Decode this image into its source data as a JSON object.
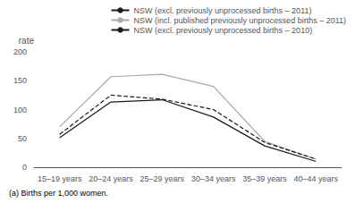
{
  "chart_data": {
    "type": "line",
    "categories": [
      "15–19 years",
      "20–24 years",
      "25–29 years",
      "30–34 years",
      "35–39 years",
      "40–44 years"
    ],
    "series": [
      {
        "name": "NSW (excl. previously unprocessed births – 2011)",
        "color": "#1a1a1a",
        "line_style": "solid",
        "values": [
          51,
          113,
          117,
          87,
          37,
          10
        ]
      },
      {
        "name": "NSW (incl. published previously unprocessed births – 2011)",
        "color": "#aaaaaa",
        "line_style": "solid",
        "values": [
          70,
          157,
          161,
          140,
          45,
          14
        ]
      },
      {
        "name": "NSW (excl. previously unprocessed births – 2010)",
        "color": "#1a1a1a",
        "line_style": "dashed",
        "values": [
          57,
          125,
          118,
          100,
          43,
          14
        ]
      }
    ],
    "ylabel": "rate",
    "footnote": "(a) Births per 1,000 women.",
    "ylim": [
      0,
      200
    ],
    "yticks": [
      0,
      50,
      100,
      150,
      200
    ],
    "grid": false,
    "legend": "upper right"
  }
}
